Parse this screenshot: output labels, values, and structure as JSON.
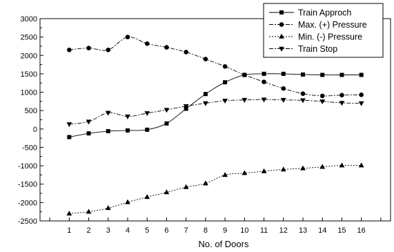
{
  "chart_data": {
    "type": "line",
    "title": "",
    "xlabel": "No. of Doors",
    "ylabel": "",
    "x": [
      1,
      2,
      3,
      4,
      5,
      6,
      7,
      8,
      9,
      10,
      11,
      12,
      13,
      14,
      15,
      16
    ],
    "x_ticks": [
      "1",
      "2",
      "3",
      "4",
      "5",
      "6",
      "7",
      "8",
      "9",
      "10",
      "11",
      "12",
      "13",
      "14",
      "15",
      "16"
    ],
    "xlim": [
      -0.5,
      17.5
    ],
    "ylim": [
      -2500,
      3000
    ],
    "y_ticks": [
      "3000",
      "2500",
      "2000",
      "1500",
      "1000",
      "500",
      "0",
      "-500",
      "-1000",
      "-1500",
      "-2000",
      "-2500"
    ],
    "grid": false,
    "legend_position": "top-right",
    "series": [
      {
        "name": "Train Approch",
        "marker": "square",
        "dash": "solid",
        "values": [
          -220,
          -120,
          -60,
          -40,
          -20,
          150,
          550,
          950,
          1270,
          1470,
          1500,
          1500,
          1480,
          1470,
          1470,
          1470
        ]
      },
      {
        "name": "Max. (+) Pressure",
        "marker": "circle",
        "dash": "dashdot",
        "values": [
          2150,
          2200,
          2150,
          2500,
          2320,
          2220,
          2090,
          1900,
          1700,
          1470,
          1280,
          1100,
          960,
          900,
          920,
          930
        ]
      },
      {
        "name": "Min. (-) Pressure",
        "marker": "triangle-up",
        "dash": "dotted",
        "values": [
          -2300,
          -2250,
          -2150,
          -1990,
          -1850,
          -1720,
          -1580,
          -1480,
          -1250,
          -1200,
          -1150,
          -1100,
          -1070,
          -1030,
          -990,
          -990
        ]
      },
      {
        "name": "Train Stop",
        "marker": "triangle-down",
        "dash": "dashdot",
        "values": [
          130,
          200,
          440,
          340,
          430,
          520,
          620,
          700,
          770,
          790,
          800,
          790,
          780,
          750,
          710,
          700
        ]
      }
    ]
  }
}
